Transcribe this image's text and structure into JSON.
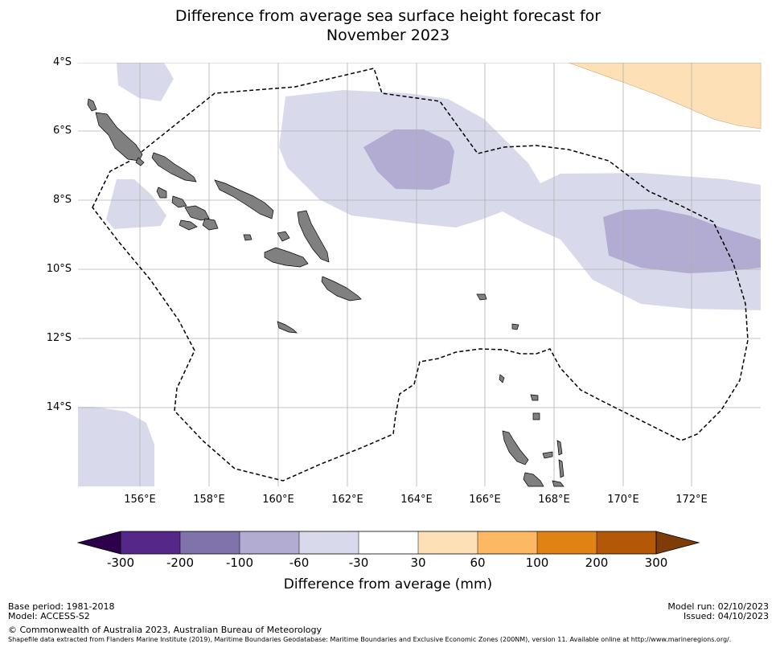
{
  "title": {
    "line1": "Difference from average sea surface height forecast for",
    "line2": "November 2023"
  },
  "map": {
    "lat_labels": [
      "4°S",
      "6°S",
      "8°S",
      "10°S",
      "12°S",
      "14°S"
    ],
    "lon_labels": [
      "156°E",
      "158°E",
      "160°E",
      "162°E",
      "164°E",
      "166°E",
      "168°E",
      "170°E",
      "172°E"
    ],
    "extent": {
      "lon_min": 154.2,
      "lon_max": 174.0,
      "lat_min": -16.3,
      "lat_max": -4.0
    },
    "colors": {
      "ocean": "#ffffff",
      "land": "#808080",
      "coast": "#000000",
      "grid": "#b0b0b0",
      "eez": "#000000"
    }
  },
  "colorbar": {
    "tick_labels": [
      "-300",
      "-200",
      "-100",
      "-60",
      "-30",
      "30",
      "60",
      "100",
      "200",
      "300"
    ],
    "label": "Difference from average (mm)",
    "under_color": "#2d004b",
    "over_color": "#7f3b08",
    "bin_colors": [
      "#542788",
      "#8073ac",
      "#b2abd2",
      "#d8daeb",
      "#ffffff",
      "#fee0b6",
      "#fdb863",
      "#e08214",
      "#b35806"
    ]
  },
  "footer": {
    "base_period": "Base period: 1981-2018",
    "model": "Model: ACCESS-S2",
    "copyright": "© Commonwealth of Australia 2023, Australian Bureau of Meteorology",
    "shapefile": "Shapefile data extracted from Flanders Marine Institute (2019), Maritime Boundaries Geodatabase: Maritime Boundaries and Exclusive Economic Zones (200NM), version 11. Available online at http://www.marineregions.org/.",
    "model_run": "Model run: 02/10/2023",
    "issued": "Issued: 04/10/2023"
  }
}
